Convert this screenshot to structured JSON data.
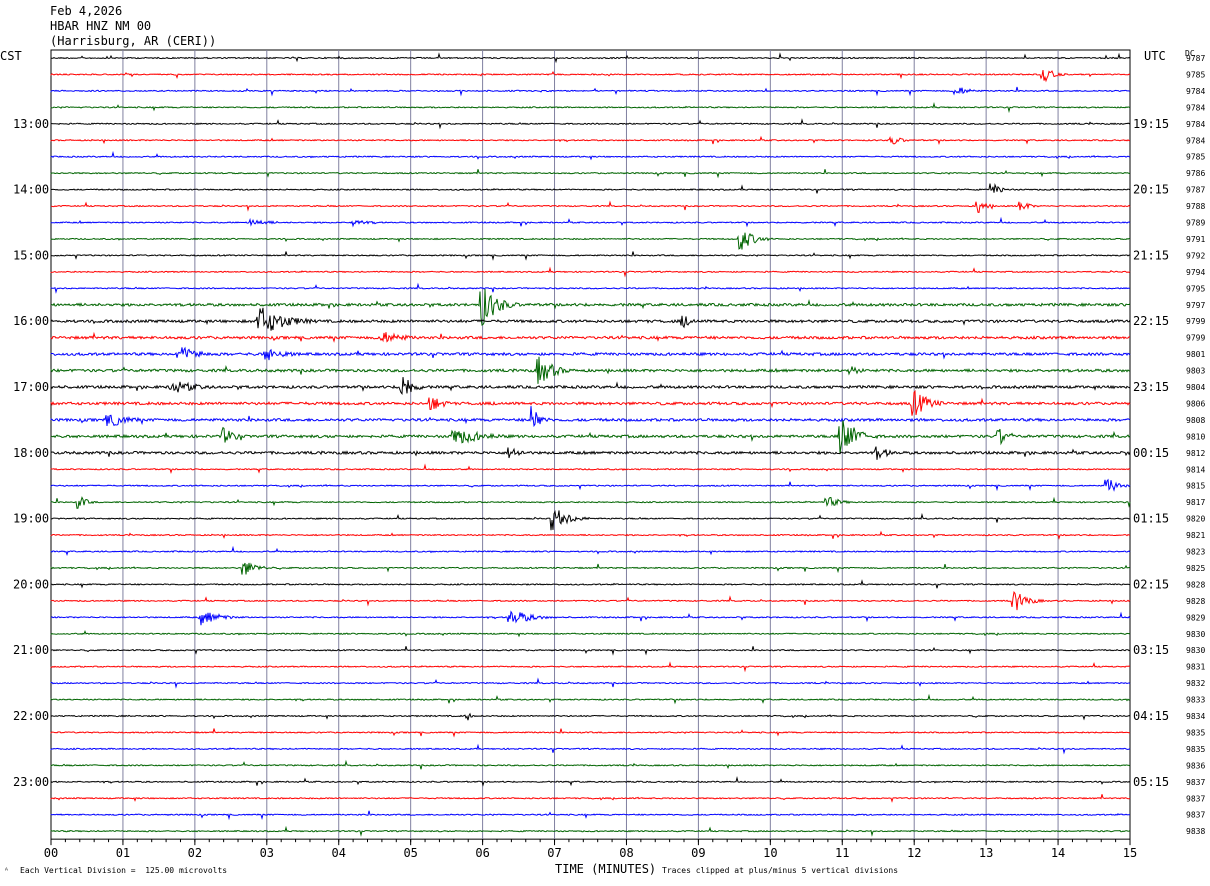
{
  "header": {
    "date": "Feb 4,2026",
    "station": "HBAR HNZ NM 00",
    "location": "(Harrisburg, AR (CERI))"
  },
  "left_axis_label": "CST",
  "right_axis_label": "UTC",
  "dc_label": "DC",
  "footer": {
    "scale_note": "Each Vertical Division =  125.00 microvolts",
    "xlabel": "TIME (MINUTES)",
    "clip_note": "Traces clipped at plus/minus 5 vertical divisions"
  },
  "colors": {
    "trace_cycle": [
      "#000000",
      "#ff0000",
      "#0000ff",
      "#006400"
    ],
    "grid": "#8080a0"
  },
  "chart_data": {
    "type": "line",
    "xlabel": "TIME (MINUTES)",
    "x_range": [
      0,
      15
    ],
    "x_ticks": [
      "00",
      "01",
      "02",
      "03",
      "04",
      "05",
      "06",
      "07",
      "08",
      "09",
      "10",
      "11",
      "12",
      "13",
      "14",
      "15"
    ],
    "trace_interval_minutes": 15,
    "trace_count": 48,
    "left_time_labels": [
      "13:00",
      "14:00",
      "15:00",
      "16:00",
      "17:00",
      "18:00",
      "19:00",
      "20:00",
      "21:00",
      "22:00",
      "23:00"
    ],
    "right_time_labels": [
      "19:15",
      "20:15",
      "21:15",
      "22:15",
      "23:15",
      "00:15",
      "01:15",
      "02:15",
      "03:15",
      "04:15",
      "05:15"
    ],
    "dc_offsets": [
      "9787",
      "9785",
      "9784",
      "9784",
      "9784",
      "9784",
      "9785",
      "9786",
      "9787",
      "9788",
      "9789",
      "9791",
      "9792",
      "9794",
      "9795",
      "9797",
      "9799",
      "9799",
      "9801",
      "9803",
      "9804",
      "9806",
      "9808",
      "9810",
      "9812",
      "9814",
      "9815",
      "9817",
      "9820",
      "9821",
      "9823",
      "9825",
      "9828",
      "9828",
      "9829",
      "9830",
      "9830",
      "9831",
      "9832",
      "9833",
      "9834",
      "9835",
      "9835",
      "9836",
      "9837",
      "9837",
      "9837",
      "9838"
    ],
    "events": [
      {
        "trace": 1,
        "minute": 13.8,
        "amp": 8,
        "dur": 0.4
      },
      {
        "trace": 2,
        "minute": 12.6,
        "amp": 5,
        "dur": 0.5
      },
      {
        "trace": 5,
        "minute": 11.7,
        "amp": 5,
        "dur": 0.4
      },
      {
        "trace": 8,
        "minute": 13.1,
        "amp": 6,
        "dur": 0.4
      },
      {
        "trace": 9,
        "minute": 12.9,
        "amp": 8,
        "dur": 0.3
      },
      {
        "trace": 9,
        "minute": 13.5,
        "amp": 6,
        "dur": 0.3
      },
      {
        "trace": 10,
        "minute": 2.8,
        "amp": 4,
        "dur": 0.7
      },
      {
        "trace": 10,
        "minute": 4.2,
        "amp": 4,
        "dur": 0.6
      },
      {
        "trace": 11,
        "minute": 9.6,
        "amp": 12,
        "dur": 0.5
      },
      {
        "trace": 15,
        "minute": 6.0,
        "amp": 22,
        "dur": 0.6
      },
      {
        "trace": 16,
        "minute": 2.9,
        "amp": 16,
        "dur": 1.0
      },
      {
        "trace": 16,
        "minute": 8.8,
        "amp": 6,
        "dur": 0.4
      },
      {
        "trace": 17,
        "minute": 4.6,
        "amp": 7,
        "dur": 0.9
      },
      {
        "trace": 18,
        "minute": 1.8,
        "amp": 8,
        "dur": 0.8
      },
      {
        "trace": 18,
        "minute": 3.0,
        "amp": 7,
        "dur": 0.8
      },
      {
        "trace": 19,
        "minute": 6.8,
        "amp": 14,
        "dur": 0.6
      },
      {
        "trace": 19,
        "minute": 11.1,
        "amp": 5,
        "dur": 0.5
      },
      {
        "trace": 20,
        "minute": 1.7,
        "amp": 7,
        "dur": 1.0
      },
      {
        "trace": 20,
        "minute": 4.9,
        "amp": 16,
        "dur": 0.4
      },
      {
        "trace": 21,
        "minute": 5.3,
        "amp": 8,
        "dur": 0.5
      },
      {
        "trace": 21,
        "minute": 12.0,
        "amp": 14,
        "dur": 0.6
      },
      {
        "trace": 22,
        "minute": 0.8,
        "amp": 8,
        "dur": 0.8
      },
      {
        "trace": 22,
        "minute": 6.7,
        "amp": 16,
        "dur": 0.3
      },
      {
        "trace": 23,
        "minute": 2.4,
        "amp": 9,
        "dur": 0.5
      },
      {
        "trace": 23,
        "minute": 5.6,
        "amp": 9,
        "dur": 1.2
      },
      {
        "trace": 23,
        "minute": 11.0,
        "amp": 20,
        "dur": 0.6
      },
      {
        "trace": 23,
        "minute": 13.2,
        "amp": 8,
        "dur": 0.3
      },
      {
        "trace": 24,
        "minute": 6.4,
        "amp": 6,
        "dur": 0.5
      },
      {
        "trace": 24,
        "minute": 11.5,
        "amp": 7,
        "dur": 0.5
      },
      {
        "trace": 26,
        "minute": 14.7,
        "amp": 8,
        "dur": 0.4
      },
      {
        "trace": 27,
        "minute": 0.4,
        "amp": 7,
        "dur": 0.3
      },
      {
        "trace": 27,
        "minute": 10.8,
        "amp": 6,
        "dur": 0.5
      },
      {
        "trace": 28,
        "minute": 7.0,
        "amp": 12,
        "dur": 0.6
      },
      {
        "trace": 31,
        "minute": 2.7,
        "amp": 8,
        "dur": 0.5
      },
      {
        "trace": 33,
        "minute": 13.4,
        "amp": 11,
        "dur": 0.5
      },
      {
        "trace": 34,
        "minute": 2.1,
        "amp": 8,
        "dur": 0.7
      },
      {
        "trace": 34,
        "minute": 6.4,
        "amp": 8,
        "dur": 0.8
      },
      {
        "trace": 40,
        "minute": 5.8,
        "amp": 5,
        "dur": 0.1
      }
    ]
  }
}
